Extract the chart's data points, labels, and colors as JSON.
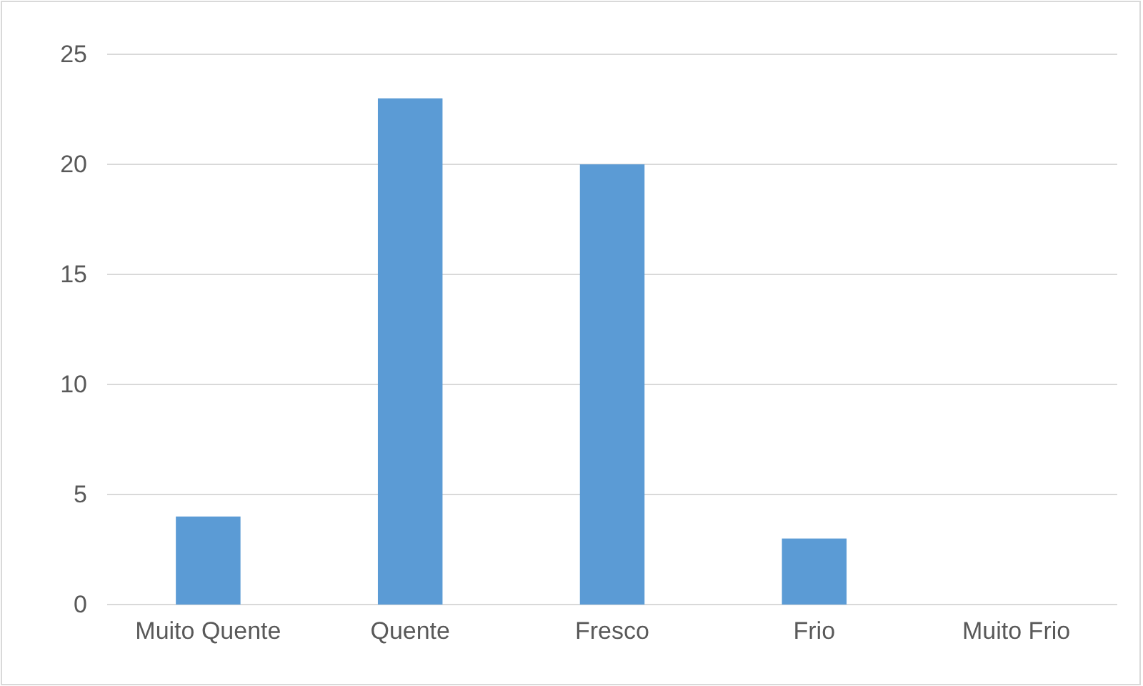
{
  "chart_data": {
    "type": "bar",
    "categories": [
      "Muito Quente",
      "Quente",
      "Fresco",
      "Frio",
      "Muito Frio"
    ],
    "values": [
      4,
      23,
      20,
      3,
      0
    ],
    "color": "#5b9bd5",
    "ylim": [
      0,
      25
    ],
    "yticks": [
      0,
      5,
      10,
      15,
      20,
      25
    ],
    "grid": "y"
  }
}
